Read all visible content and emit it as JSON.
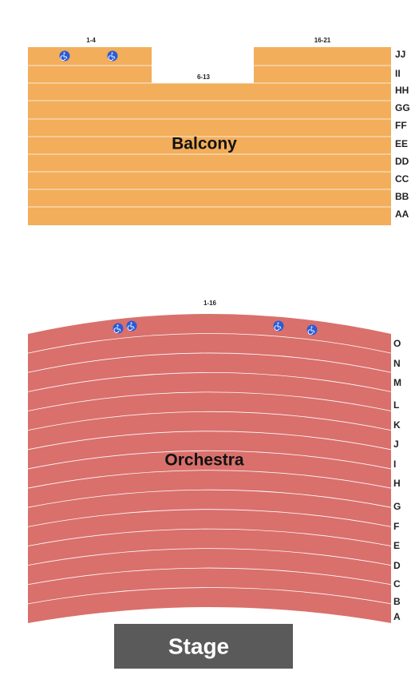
{
  "balcony": {
    "label": "Balcony",
    "sections": [
      "1-4",
      "6-13",
      "16-21"
    ],
    "rows": [
      "JJ",
      "II",
      "HH",
      "GG",
      "FF",
      "EE",
      "DD",
      "CC",
      "BB",
      "AA"
    ]
  },
  "orchestra": {
    "label": "Orchestra",
    "sections": [
      "1-16"
    ],
    "rows": [
      "O",
      "N",
      "M",
      "L",
      "K",
      "J",
      "I",
      "H",
      "G",
      "F",
      "E",
      "D",
      "C",
      "B",
      "A"
    ]
  },
  "stage": {
    "label": "Stage"
  }
}
